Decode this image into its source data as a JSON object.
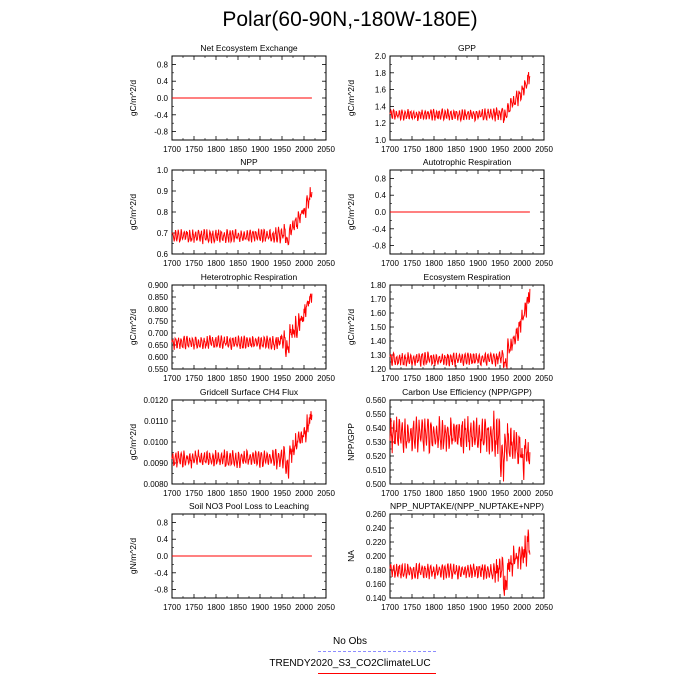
{
  "page": {
    "title": "Polar(60-90N,-180W-180E)",
    "legend": [
      {
        "label": "No Obs",
        "color": "#8c8cff",
        "style": "dashed"
      },
      {
        "label": "TRENDY2020_S3_CO2ClimateLUC",
        "color": "#ff0000",
        "style": "solid"
      }
    ]
  },
  "chart_data": [
    {
      "type": "line",
      "title": "Net Ecosystem Exchange",
      "ylabel": "gC/m^2/d",
      "xlim": [
        1700,
        2050
      ],
      "ylim": [
        -1.0,
        1.0
      ],
      "yticks": [
        -0.8,
        -0.4,
        0.0,
        0.4,
        0.8
      ],
      "ytick_labels": [
        "-0.8",
        "-0.4",
        "0.0",
        "0.4",
        "0.8"
      ],
      "xticks": [
        1700,
        1750,
        1800,
        1850,
        1900,
        1950,
        2000,
        2050
      ],
      "series": [
        {
          "name": "TRENDY2020_S3_CO2ClimateLUC",
          "x_range": [
            1700,
            2018
          ],
          "kind": "flat",
          "base": 0.0
        }
      ]
    },
    {
      "type": "line",
      "title": "GPP",
      "ylabel": "gC/m^2/d",
      "xlim": [
        1700,
        2050
      ],
      "ylim": [
        1.0,
        2.0
      ],
      "yticks": [
        1.0,
        1.2,
        1.4,
        1.6,
        1.8,
        2.0
      ],
      "ytick_labels": [
        "1.0",
        "1.2",
        "1.4",
        "1.6",
        "1.8",
        "2.0"
      ],
      "xticks": [
        1700,
        1750,
        1800,
        1850,
        1900,
        1950,
        2000,
        2050
      ],
      "series": [
        {
          "name": "TRENDY2020_S3_CO2ClimateLUC",
          "x_range": [
            1700,
            2018
          ],
          "kind": "trend",
          "base": 1.3,
          "amp": 0.05,
          "end": 1.78,
          "wigAmp": 0.06
        }
      ]
    },
    {
      "type": "line",
      "title": "NPP",
      "ylabel": "gC/m^2/d",
      "xlim": [
        1700,
        2050
      ],
      "ylim": [
        0.6,
        1.0
      ],
      "yticks": [
        0.6,
        0.7,
        0.8,
        0.9,
        1.0
      ],
      "ytick_labels": [
        "0.6",
        "0.7",
        "0.8",
        "0.9",
        "1.0"
      ],
      "xticks": [
        1700,
        1750,
        1800,
        1850,
        1900,
        1950,
        2000,
        2050
      ],
      "series": [
        {
          "name": "TRENDY2020_S3_CO2ClimateLUC",
          "x_range": [
            1700,
            2018
          ],
          "kind": "trend",
          "base": 0.685,
          "amp": 0.025,
          "end": 0.9,
          "wigAmp": 0.035
        }
      ]
    },
    {
      "type": "line",
      "title": "Autotrophic Respiration",
      "ylabel": "gC/m^2/d",
      "xlim": [
        1700,
        2050
      ],
      "ylim": [
        -1.0,
        1.0
      ],
      "yticks": [
        -0.8,
        -0.4,
        0.0,
        0.4,
        0.8
      ],
      "ytick_labels": [
        "-0.8",
        "-0.4",
        "0.0",
        "0.4",
        "0.8"
      ],
      "xticks": [
        1700,
        1750,
        1800,
        1850,
        1900,
        1950,
        2000,
        2050
      ],
      "series": [
        {
          "name": "TRENDY2020_S3_CO2ClimateLUC",
          "x_range": [
            1700,
            2018
          ],
          "kind": "flat",
          "base": 0.0
        }
      ]
    },
    {
      "type": "line",
      "title": "Heterotrophic Respiration",
      "ylabel": "gC/m^2/d",
      "xlim": [
        1700,
        2050
      ],
      "ylim": [
        0.55,
        0.9
      ],
      "yticks": [
        0.55,
        0.6,
        0.65,
        0.7,
        0.75,
        0.8,
        0.85,
        0.9
      ],
      "ytick_labels": [
        "0.550",
        "0.600",
        "0.650",
        "0.700",
        "0.750",
        "0.800",
        "0.850",
        "0.900"
      ],
      "xticks": [
        1700,
        1750,
        1800,
        1850,
        1900,
        1950,
        2000,
        2050
      ],
      "series": [
        {
          "name": "TRENDY2020_S3_CO2ClimateLUC",
          "x_range": [
            1700,
            2018
          ],
          "kind": "trend",
          "base": 0.66,
          "amp": 0.02,
          "end": 0.86,
          "wigAmp": 0.04
        }
      ]
    },
    {
      "type": "line",
      "title": "Ecosystem Respiration",
      "ylabel": "gC/m^2/d",
      "xlim": [
        1700,
        2050
      ],
      "ylim": [
        1.2,
        1.8
      ],
      "yticks": [
        1.2,
        1.3,
        1.4,
        1.5,
        1.6,
        1.7,
        1.8
      ],
      "ytick_labels": [
        "1.20",
        "1.30",
        "1.40",
        "1.50",
        "1.60",
        "1.70",
        "1.80"
      ],
      "xticks": [
        1700,
        1750,
        1800,
        1850,
        1900,
        1950,
        2000,
        2050
      ],
      "series": [
        {
          "name": "TRENDY2020_S3_CO2ClimateLUC",
          "x_range": [
            1700,
            2018
          ],
          "kind": "trend",
          "base": 1.27,
          "amp": 0.035,
          "end": 1.73,
          "wigAmp": 0.06
        }
      ]
    },
    {
      "type": "line",
      "title": "Gridcell Surface CH4 Flux",
      "ylabel": "gC/m^2/d",
      "xlim": [
        1700,
        2050
      ],
      "ylim": [
        0.008,
        0.012
      ],
      "yticks": [
        0.008,
        0.009,
        0.01,
        0.011,
        0.012
      ],
      "ytick_labels": [
        "0.0080",
        "0.0090",
        "0.0100",
        "0.0110",
        "0.0120"
      ],
      "xticks": [
        1700,
        1750,
        1800,
        1850,
        1900,
        1950,
        2000,
        2050
      ],
      "series": [
        {
          "name": "TRENDY2020_S3_CO2ClimateLUC",
          "x_range": [
            1700,
            2018
          ],
          "kind": "trend",
          "base": 0.0092,
          "amp": 0.0003,
          "end": 0.0113,
          "wigAmp": 0.0005
        }
      ]
    },
    {
      "type": "line",
      "title": "Carbon Use Efficiency (NPP/GPP)",
      "ylabel": "NPP/GPP",
      "xlim": [
        1700,
        2050
      ],
      "ylim": [
        0.5,
        0.56
      ],
      "yticks": [
        0.5,
        0.51,
        0.52,
        0.53,
        0.54,
        0.55,
        0.56
      ],
      "ytick_labels": [
        "0.500",
        "0.510",
        "0.520",
        "0.530",
        "0.540",
        "0.550",
        "0.560"
      ],
      "xticks": [
        1700,
        1750,
        1800,
        1850,
        1900,
        1950,
        2000,
        2050
      ],
      "series": [
        {
          "name": "TRENDY2020_S3_CO2ClimateLUC",
          "x_range": [
            1700,
            2018
          ],
          "kind": "cue",
          "base": 0.535,
          "amp": 0.009,
          "end": 0.52,
          "wigAmp": 0.01
        }
      ]
    },
    {
      "type": "line",
      "title": "Soil NO3 Pool Loss to Leaching",
      "ylabel": "gN/m^2/d",
      "xlim": [
        1700,
        2050
      ],
      "ylim": [
        -1.0,
        1.0
      ],
      "yticks": [
        -0.8,
        -0.4,
        0.0,
        0.4,
        0.8
      ],
      "ytick_labels": [
        "-0.8",
        "-0.4",
        "0.0",
        "0.4",
        "0.8"
      ],
      "xticks": [
        1700,
        1750,
        1800,
        1850,
        1900,
        1950,
        2000,
        2050
      ],
      "series": [
        {
          "name": "TRENDY2020_S3_CO2ClimateLUC",
          "x_range": [
            1700,
            2018
          ],
          "kind": "flat",
          "base": 0.0
        }
      ]
    },
    {
      "type": "line",
      "title": "NPP_NUPTAKE/(NPP_NUPTAKE+NPP)",
      "ylabel": "NA",
      "xlim": [
        1700,
        2050
      ],
      "ylim": [
        0.14,
        0.26
      ],
      "yticks": [
        0.14,
        0.16,
        0.18,
        0.2,
        0.22,
        0.24,
        0.26
      ],
      "ytick_labels": [
        "0.140",
        "0.160",
        "0.180",
        "0.200",
        "0.220",
        "0.240",
        "0.260"
      ],
      "xticks": [
        1700,
        1750,
        1800,
        1850,
        1900,
        1950,
        2000,
        2050
      ],
      "series": [
        {
          "name": "TRENDY2020_S3_CO2ClimateLUC",
          "x_range": [
            1700,
            2018
          ],
          "kind": "trend",
          "base": 0.178,
          "amp": 0.008,
          "end": 0.22,
          "wigAmp": 0.022
        }
      ]
    }
  ]
}
